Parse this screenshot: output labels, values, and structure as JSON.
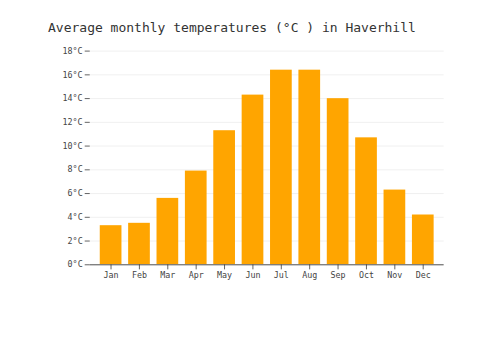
{
  "chart_data": {
    "type": "bar",
    "title": "Average monthly temperatures (°C ) in Haverhill",
    "categories": [
      "Jan",
      "Feb",
      "Mar",
      "Apr",
      "May",
      "Jun",
      "Jul",
      "Aug",
      "Sep",
      "Oct",
      "Nov",
      "Dec"
    ],
    "values": [
      3.3,
      3.5,
      5.6,
      7.9,
      11.3,
      14.3,
      16.4,
      16.4,
      14.0,
      10.7,
      6.3,
      4.2
    ],
    "color": "#FFA500",
    "ylim": [
      0,
      18
    ],
    "yticks": [
      {
        "value": 0,
        "label": "0°C"
      },
      {
        "value": 2,
        "label": "2°C"
      },
      {
        "value": 4,
        "label": "4°C"
      },
      {
        "value": 6,
        "label": "6°C"
      },
      {
        "value": 8,
        "label": "8°C"
      },
      {
        "value": 10,
        "label": "10°C"
      },
      {
        "value": 12,
        "label": "12°C"
      },
      {
        "value": 14,
        "label": "14°C"
      },
      {
        "value": 16,
        "label": "16°C"
      },
      {
        "value": 18,
        "label": "18°C"
      }
    ],
    "grid": true
  }
}
